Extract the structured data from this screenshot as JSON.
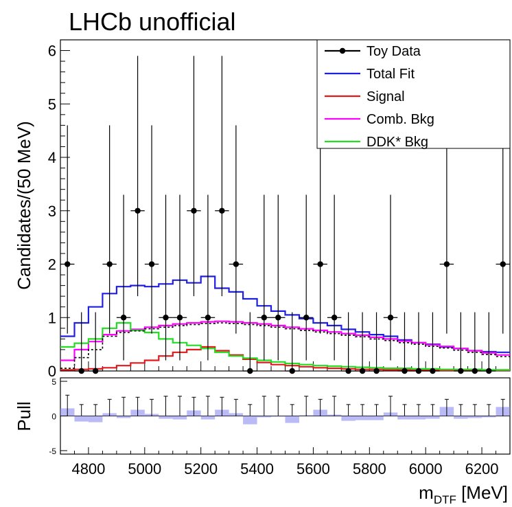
{
  "title": "LHCb unofficial",
  "chart_data": [
    {
      "type": "line",
      "panel": "main",
      "ylabel": "Candidates/(50 MeV)",
      "xlim": [
        4700,
        6300
      ],
      "ylim": [
        0,
        6.2
      ],
      "yticks": [
        0,
        1,
        2,
        3,
        4,
        5,
        6
      ],
      "grid": false,
      "legend_position": "top-right",
      "legend": [
        {
          "label": "Toy Data",
          "color": "#000000",
          "style": "marker"
        },
        {
          "label": "Total Fit",
          "color": "#1f1fe0",
          "style": "line"
        },
        {
          "label": "Signal",
          "color": "#e01a1a",
          "style": "line"
        },
        {
          "label": "Comb. Bkg",
          "color": "#ff00ff",
          "style": "line"
        },
        {
          "label": "DDK* Bkg",
          "color": "#22dd22",
          "style": "line"
        }
      ],
      "data_points": {
        "name": "Toy Data",
        "x": [
          4725,
          4775,
          4825,
          4875,
          4925,
          4975,
          5025,
          5075,
          5125,
          5175,
          5225,
          5275,
          5325,
          5375,
          5425,
          5475,
          5525,
          5575,
          5625,
          5675,
          5725,
          5775,
          5825,
          5875,
          5925,
          5975,
          6025,
          6075,
          6125,
          6175,
          6225,
          6275
        ],
        "y": [
          2,
          0,
          0,
          2,
          1,
          3,
          2,
          1,
          1,
          3,
          1,
          3,
          2,
          0,
          1,
          1,
          0,
          1,
          2,
          1,
          0,
          0,
          0,
          1,
          0,
          0,
          0,
          2,
          0,
          0,
          0,
          2
        ],
        "err_low": [
          1.3,
          0,
          0,
          1.3,
          0.8,
          1.6,
          1.3,
          0.8,
          0.8,
          1.6,
          0.8,
          1.6,
          1.3,
          0,
          0.8,
          0.8,
          0,
          0.8,
          1.3,
          0.8,
          0,
          0,
          0,
          0.8,
          0,
          0,
          0,
          1.3,
          0,
          0,
          0,
          1.3
        ],
        "err_high": [
          2.6,
          1.1,
          1.1,
          2.6,
          2.3,
          2.9,
          2.6,
          2.3,
          2.3,
          2.9,
          2.3,
          2.9,
          2.6,
          1.1,
          2.3,
          2.3,
          1.1,
          2.3,
          2.6,
          2.3,
          1.1,
          1.1,
          1.1,
          2.3,
          1.1,
          1.1,
          1.1,
          2.6,
          1.1,
          1.1,
          1.1,
          2.6
        ]
      },
      "curves": [
        {
          "name": "Total Fit",
          "color": "#1f1fe0",
          "step_edges": 4700,
          "bin": 50,
          "values": [
            0.65,
            0.9,
            1.2,
            1.45,
            1.58,
            1.6,
            1.58,
            1.63,
            1.7,
            1.65,
            1.77,
            1.55,
            1.48,
            1.35,
            1.22,
            1.12,
            1.05,
            0.98,
            0.9,
            0.85,
            0.78,
            0.73,
            0.68,
            0.65,
            0.58,
            0.53,
            0.5,
            0.45,
            0.42,
            0.38,
            0.36,
            0.35
          ]
        },
        {
          "name": "Signal",
          "color": "#e01a1a",
          "step_edges": 4700,
          "bin": 50,
          "values": [
            0.02,
            0.03,
            0.04,
            0.06,
            0.1,
            0.15,
            0.2,
            0.28,
            0.35,
            0.4,
            0.45,
            0.38,
            0.3,
            0.22,
            0.16,
            0.12,
            0.1,
            0.08,
            0.06,
            0.05,
            0.04,
            0.03,
            0.03,
            0.02,
            0.02,
            0.02,
            0.02,
            0.01,
            0.01,
            0.01,
            0.01,
            0.01
          ]
        },
        {
          "name": "Comb. Bkg",
          "color": "#ff00ff",
          "step_edges": 4700,
          "bin": 50,
          "values": [
            0.2,
            0.4,
            0.55,
            0.68,
            0.75,
            0.78,
            0.82,
            0.85,
            0.88,
            0.9,
            0.92,
            0.93,
            0.92,
            0.9,
            0.88,
            0.85,
            0.82,
            0.79,
            0.76,
            0.73,
            0.7,
            0.67,
            0.63,
            0.6,
            0.56,
            0.53,
            0.49,
            0.46,
            0.42,
            0.38,
            0.34,
            0.3
          ]
        },
        {
          "name": "DDK* Bkg",
          "color": "#22dd22",
          "step_edges": 4700,
          "bin": 50,
          "values": [
            0.45,
            0.52,
            0.6,
            0.8,
            0.9,
            0.76,
            0.72,
            0.6,
            0.53,
            0.48,
            0.42,
            0.35,
            0.28,
            0.24,
            0.2,
            0.17,
            0.14,
            0.12,
            0.1,
            0.09,
            0.08,
            0.07,
            0.06,
            0.05,
            0.05,
            0.04,
            0.04,
            0.03,
            0.03,
            0.03,
            0.02,
            0.02
          ]
        }
      ]
    },
    {
      "type": "bar",
      "panel": "pull",
      "ylabel": "Pull",
      "xlabel_main": "m",
      "xlabel_sub": "DTF",
      "xlabel_unit": " [MeV]",
      "xlim": [
        4700,
        6300
      ],
      "ylim": [
        -5.5,
        5.5
      ],
      "yticks": [
        -5,
        0,
        5
      ],
      "xticks": [
        4800,
        5000,
        5200,
        5400,
        5600,
        5800,
        6000,
        6200
      ],
      "bar_color": "#8c8cf0",
      "x": [
        4725,
        4775,
        4825,
        4875,
        4925,
        4975,
        5025,
        5075,
        5125,
        5175,
        5225,
        5275,
        5325,
        5375,
        5425,
        5475,
        5525,
        5575,
        5625,
        5675,
        5725,
        5775,
        5825,
        5875,
        5925,
        5975,
        6025,
        6075,
        6125,
        6175,
        6225,
        6275
      ],
      "values": [
        1.1,
        -0.8,
        -0.9,
        0.4,
        -0.3,
        0.9,
        0.3,
        -0.4,
        -0.5,
        0.8,
        -0.5,
        0.9,
        0.4,
        -1.2,
        -0.2,
        -0.1,
        -1.0,
        0.1,
        0.9,
        0.2,
        -0.7,
        -0.6,
        -0.6,
        0.5,
        -0.5,
        -0.5,
        -0.4,
        1.3,
        -0.4,
        -0.3,
        -0.2,
        1.3
      ],
      "err": [
        2.0,
        1.1,
        1.1,
        1.6,
        1.8,
        1.8,
        1.6,
        1.9,
        1.9,
        1.8,
        1.9,
        1.8,
        1.6,
        1.1,
        1.9,
        1.9,
        1.1,
        1.9,
        1.6,
        1.9,
        1.1,
        1.1,
        1.1,
        1.9,
        1.1,
        1.1,
        1.1,
        1.6,
        1.1,
        1.1,
        1.1,
        1.6
      ]
    }
  ]
}
